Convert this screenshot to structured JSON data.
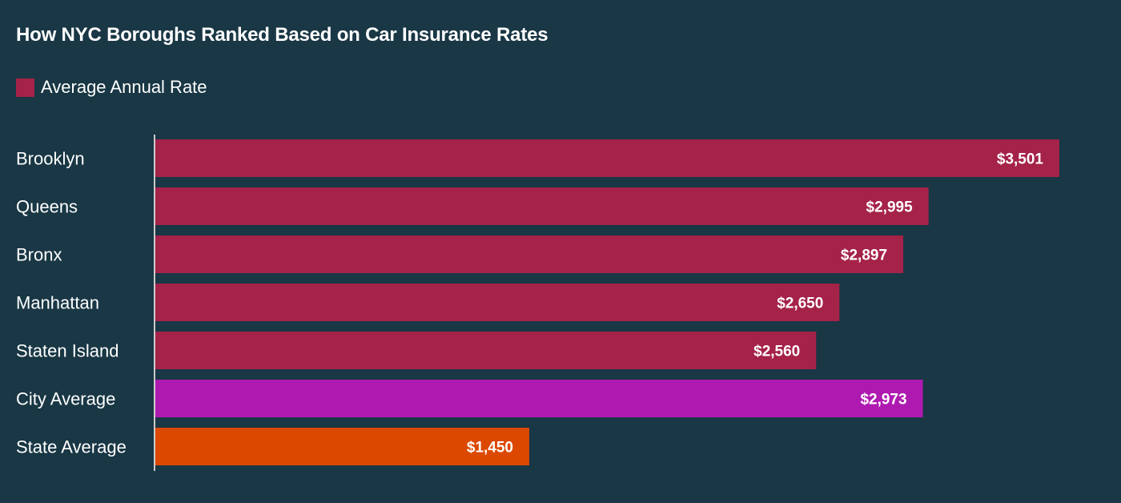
{
  "chart_data": {
    "type": "bar",
    "orientation": "horizontal",
    "title": "How NYC Boroughs Ranked Based on Car Insurance Rates",
    "legend": {
      "position": "top-left",
      "entries": [
        {
          "label": "Average Annual Rate",
          "color": "#a52249"
        }
      ]
    },
    "categories": [
      "Brooklyn",
      "Queens",
      "Bronx",
      "Manhattan",
      "Staten Island",
      "City Average",
      "State Average"
    ],
    "values": [
      3501,
      2995,
      2897,
      2650,
      2560,
      2973,
      1450
    ],
    "value_labels": [
      "$3,501",
      "$2,995",
      "$2,897",
      "$2,650",
      "$2,560",
      "$2,973",
      "$1,450"
    ],
    "bar_colors": [
      "#a52249",
      "#a52249",
      "#a52249",
      "#a52249",
      "#a52249",
      "#ae1ab0",
      "#dc4800"
    ],
    "xlim": [
      0,
      3501
    ],
    "grid": false
  },
  "colors": {
    "background": "#193745",
    "axis_line": "#cccccc",
    "text": "#ffffff"
  }
}
